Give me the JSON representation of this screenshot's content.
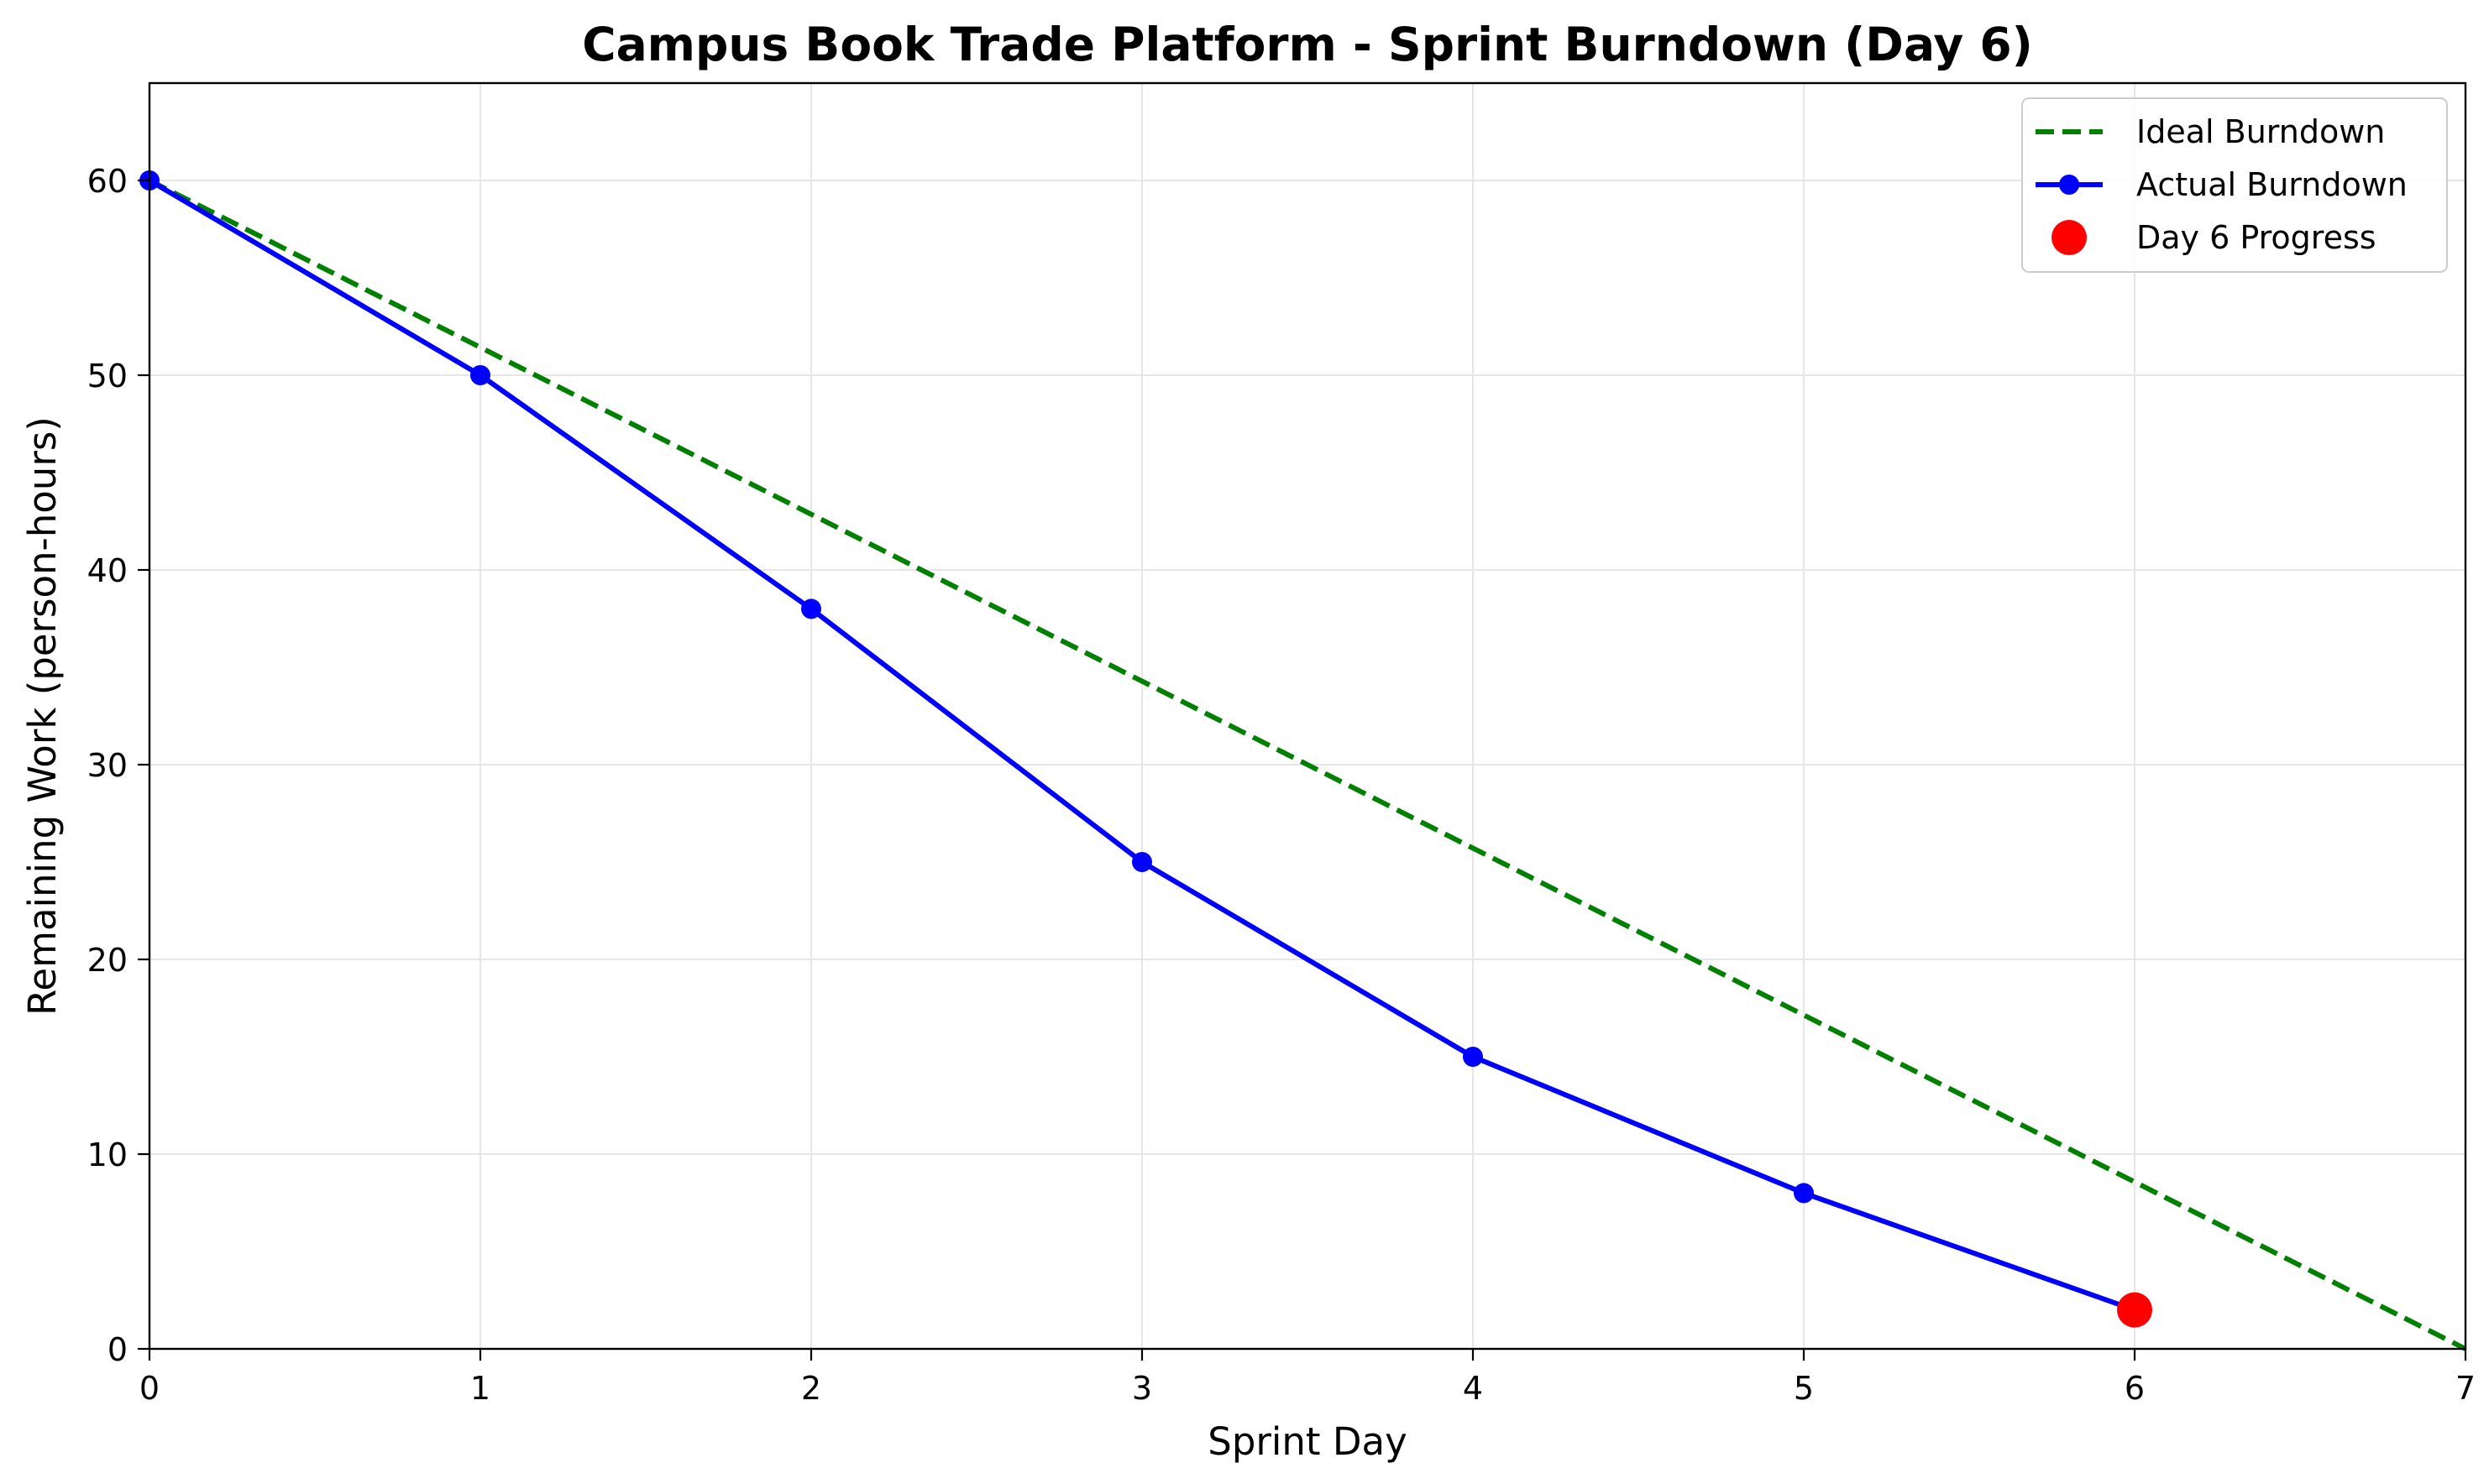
{
  "chart_data": {
    "type": "line",
    "title": "Campus Book Trade Platform - Sprint Burndown (Day 6)",
    "xlabel": "Sprint Day",
    "ylabel": "Remaining Work (person-hours)",
    "xlim": [
      0,
      7
    ],
    "ylim": [
      0,
      65
    ],
    "xticks": [
      0,
      1,
      2,
      3,
      4,
      5,
      6,
      7
    ],
    "yticks": [
      0,
      10,
      20,
      30,
      40,
      50,
      60
    ],
    "grid": true,
    "legend_position": "top-right",
    "series": [
      {
        "name": "Ideal Burndown",
        "style": "dashed",
        "color": "#008000",
        "x": [
          0,
          7
        ],
        "y": [
          60,
          0
        ]
      },
      {
        "name": "Actual Burndown",
        "style": "solid-marker",
        "color": "#0000ff",
        "x": [
          0,
          1,
          2,
          3,
          4,
          5,
          6
        ],
        "y": [
          60,
          50,
          38,
          25,
          15,
          8,
          2
        ]
      },
      {
        "name": "Day 6 Progress",
        "style": "point",
        "color": "#ff0000",
        "x": [
          6
        ],
        "y": [
          2
        ]
      }
    ]
  }
}
